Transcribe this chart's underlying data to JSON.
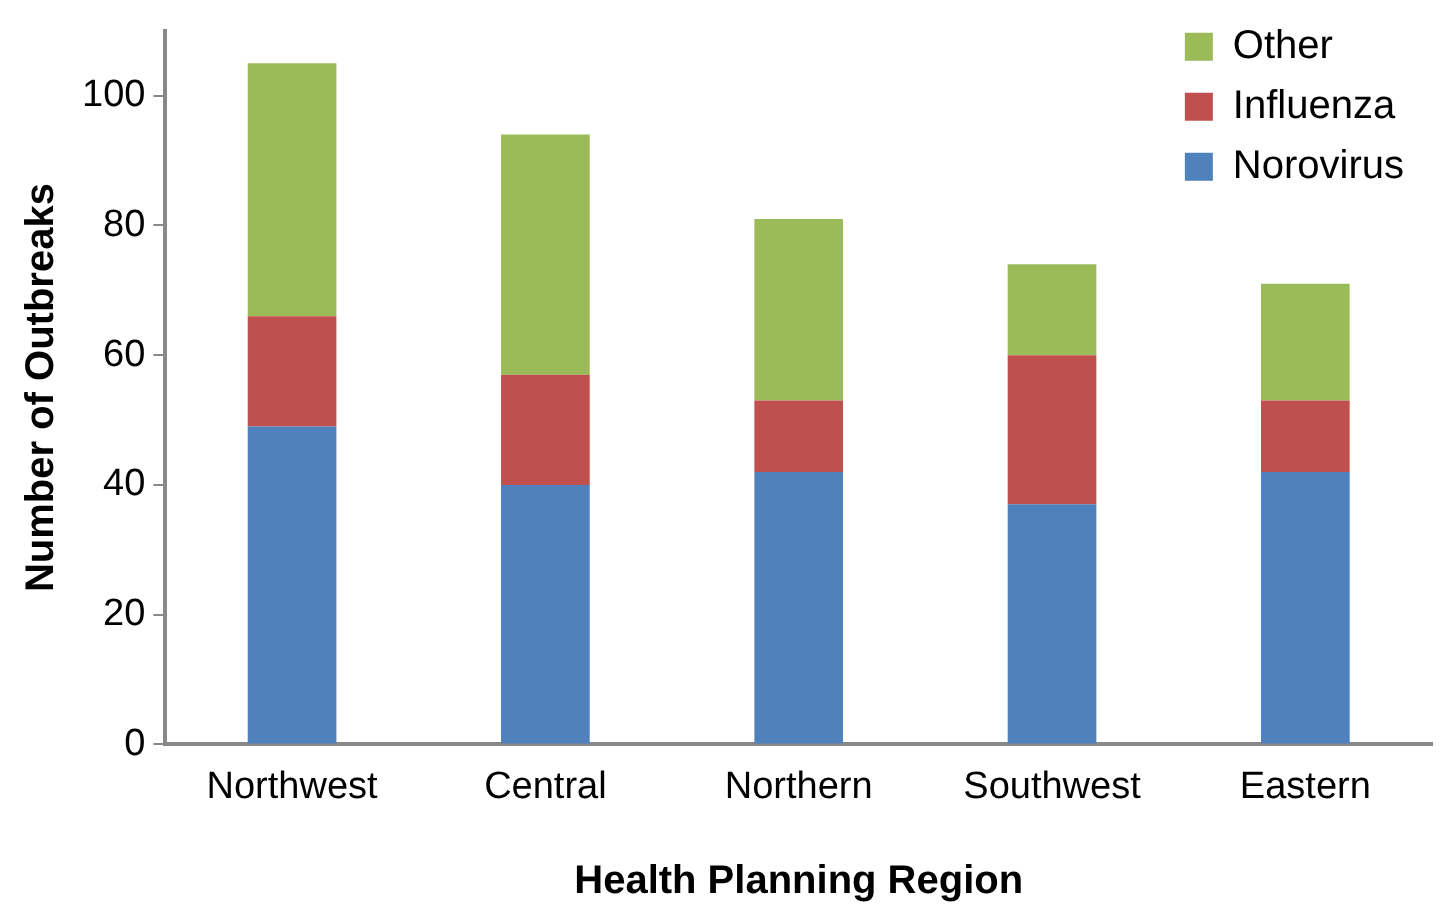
{
  "chart_data": {
    "type": "bar",
    "stacked": true,
    "xlabel": "Health Planning Region",
    "ylabel": "Number of Outbreaks",
    "categories": [
      "Northwest",
      "Central",
      "Northern",
      "Southwest",
      "Eastern"
    ],
    "series": [
      {
        "name": "Norovirus",
        "color": "#4f81bd",
        "values": [
          49,
          40,
          42,
          37,
          42
        ]
      },
      {
        "name": "Influenza",
        "color": "#c0504d",
        "values": [
          17,
          17,
          11,
          23,
          11
        ]
      },
      {
        "name": "Other",
        "color": "#9bbb59",
        "values": [
          39,
          37,
          28,
          14,
          18
        ]
      }
    ],
    "ylim": [
      0,
      110
    ],
    "yticks": [
      0,
      20,
      40,
      60,
      80,
      100
    ],
    "grid": false,
    "legend": "top right"
  }
}
